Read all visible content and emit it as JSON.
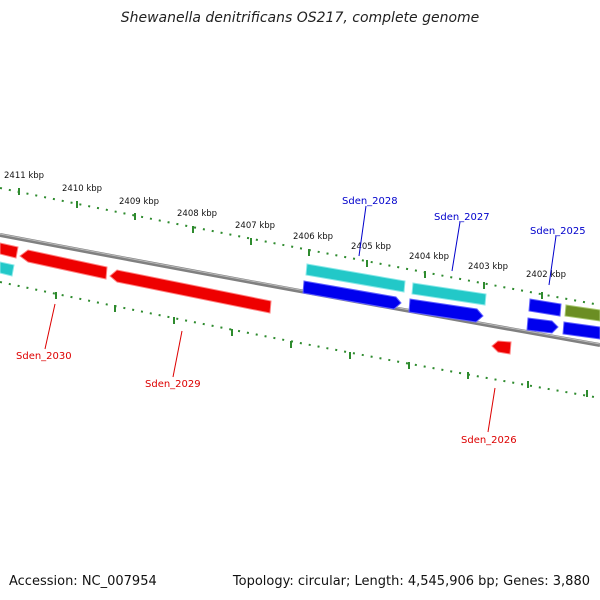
{
  "title": "Shewanella denitrificans OS217, complete genome",
  "footer": {
    "accession": "Accession: NC_007954",
    "stats": "Topology: circular; Length: 4,545,906 bp; Genes: 3,880"
  },
  "kbp_labels": [
    "2411 kbp",
    "2410 kbp",
    "2409 kbp",
    "2408 kbp",
    "2407 kbp",
    "2406 kbp",
    "2405 kbp",
    "2404 kbp",
    "2403 kbp",
    "2402 kbp"
  ],
  "gene_labels": {
    "forward": [
      "Sden_2028",
      "Sden_2027",
      "Sden_2025"
    ],
    "reverse": [
      "Sden_2030",
      "Sden_2029",
      "Sden_2026"
    ]
  },
  "colors": {
    "forward_label": "#0000cc",
    "reverse_label": "#dd0000",
    "red_gene": "#ee0000",
    "blue_gene": "#0000ee",
    "cyan_gene": "#22c8c8",
    "olive_gene": "#6b8e23",
    "tick": "#2e8b2e",
    "backbone": "#808080"
  }
}
